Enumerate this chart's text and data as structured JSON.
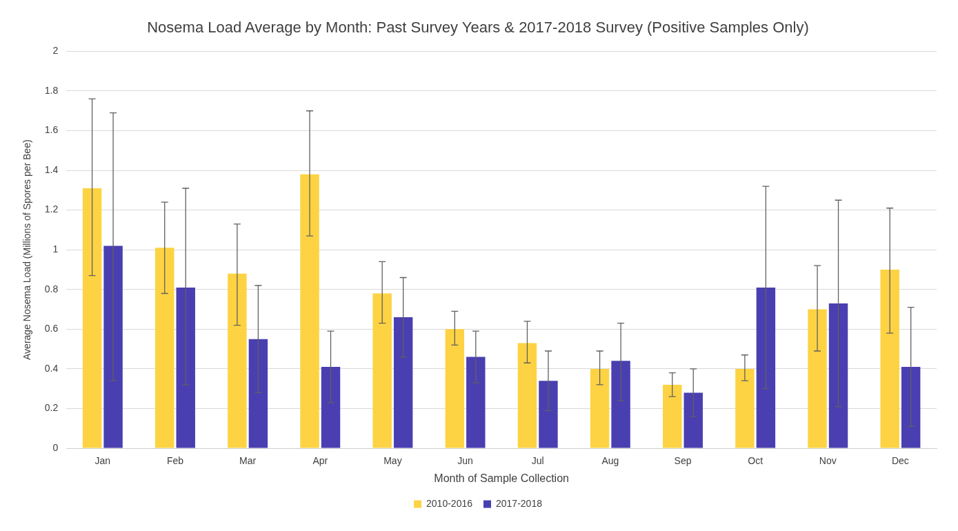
{
  "chart_data": {
    "type": "bar",
    "title": "Nosema Load Average by Month: Past Survey Years & 2017-2018 Survey (Positive Samples Only)",
    "xlabel": "Month of Sample Collection",
    "ylabel": "Average Nosema Load (Millions of Spores per Bee)",
    "categories": [
      "Jan",
      "Feb",
      "Mar",
      "Apr",
      "May",
      "Jun",
      "Jul",
      "Aug",
      "Sep",
      "Oct",
      "Nov",
      "Dec"
    ],
    "series": [
      {
        "name": "2010-2016",
        "color": "#fdd343",
        "values": [
          1.31,
          1.01,
          0.88,
          1.38,
          0.78,
          0.6,
          0.53,
          0.4,
          0.32,
          0.4,
          0.7,
          0.9
        ],
        "errors": [
          [
            0.87,
            1.76
          ],
          [
            0.78,
            1.24
          ],
          [
            0.62,
            1.13
          ],
          [
            1.07,
            1.7
          ],
          [
            0.63,
            0.94
          ],
          [
            0.52,
            0.69
          ],
          [
            0.43,
            0.64
          ],
          [
            0.32,
            0.49
          ],
          [
            0.26,
            0.38
          ],
          [
            0.34,
            0.47
          ],
          [
            0.49,
            0.92
          ],
          [
            0.58,
            1.21
          ]
        ]
      },
      {
        "name": "2017-2018",
        "color": "#4a3fb0",
        "values": [
          1.02,
          0.81,
          0.55,
          0.41,
          0.66,
          0.46,
          0.34,
          0.44,
          0.28,
          0.81,
          0.73,
          0.41
        ],
        "errors": [
          [
            0.34,
            1.69
          ],
          [
            0.32,
            1.31
          ],
          [
            0.28,
            0.82
          ],
          [
            0.23,
            0.59
          ],
          [
            0.46,
            0.86
          ],
          [
            0.33,
            0.59
          ],
          [
            0.19,
            0.49
          ],
          [
            0.24,
            0.63
          ],
          [
            0.16,
            0.4
          ],
          [
            0.3,
            1.32
          ],
          [
            0.21,
            1.25
          ],
          [
            0.11,
            0.71
          ]
        ]
      }
    ],
    "ylim": [
      0,
      2
    ],
    "yticks": [
      0,
      0.2,
      0.4,
      0.6,
      0.8,
      1,
      1.2,
      1.4,
      1.6,
      1.8,
      2
    ],
    "grid": "y",
    "legend": "bottom"
  }
}
